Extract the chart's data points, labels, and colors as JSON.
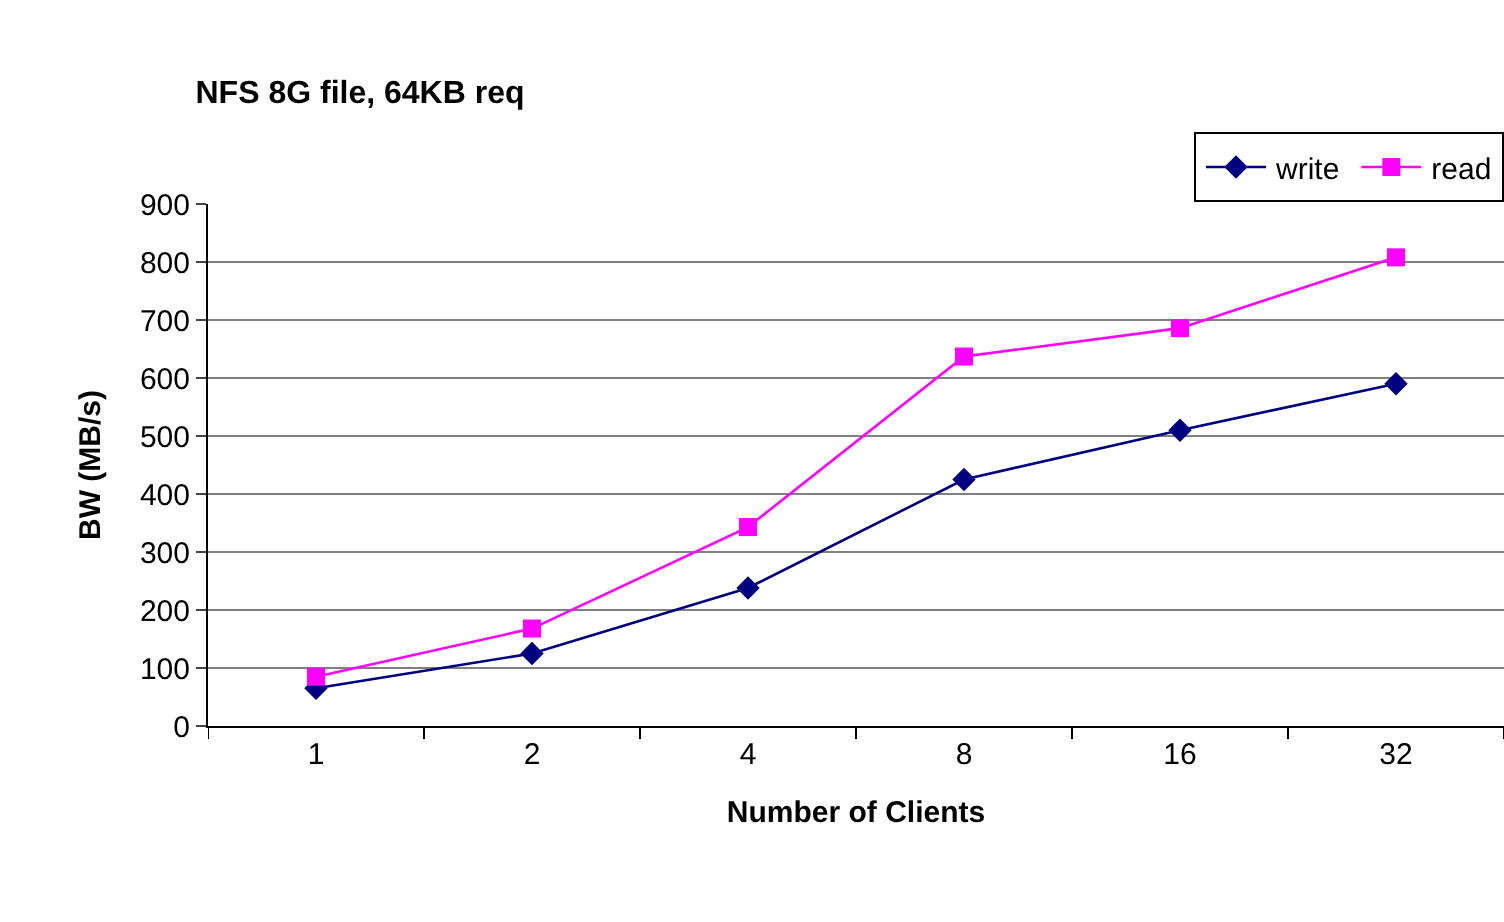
{
  "chart_data": {
    "type": "line",
    "title": "NFS 8G file, 64KB req",
    "xlabel": "Number of Clients",
    "ylabel": "BW (MB/s)",
    "categories": [
      "1",
      "2",
      "4",
      "8",
      "16",
      "32"
    ],
    "series": [
      {
        "name": "write",
        "color": "#000080",
        "marker": "diamond",
        "values": [
          65,
          125,
          238,
          425,
          510,
          590
        ]
      },
      {
        "name": "read",
        "color": "#ff00ff",
        "marker": "square",
        "values": [
          85,
          168,
          343,
          637,
          686,
          808
        ]
      }
    ],
    "ylim": [
      0,
      900
    ],
    "yticks": [
      0,
      100,
      200,
      300,
      400,
      500,
      600,
      700,
      800,
      900
    ],
    "grid": "y",
    "legend": "top right",
    "line_style": "solid"
  }
}
